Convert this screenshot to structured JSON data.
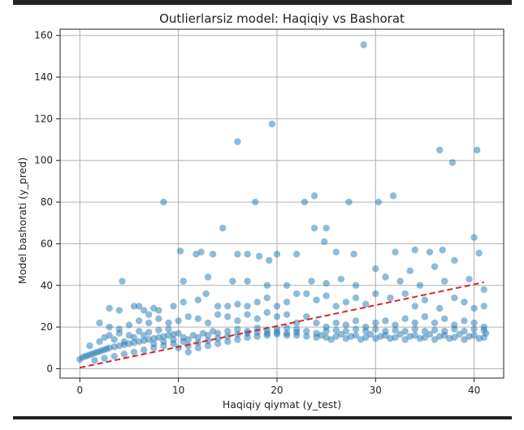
{
  "chart_data": {
    "type": "scatter",
    "title": "Outlierlarsiz model: Haqiqiy vs Bashorat",
    "xlabel": "Haqiqiy qiymat (y_test)",
    "ylabel": "Model bashorati (y_pred)",
    "xlim": [
      -2,
      43
    ],
    "ylim": [
      -4.5,
      163
    ],
    "xticks": [
      0,
      10,
      20,
      30,
      40
    ],
    "xtick_labels": [
      "0",
      "10",
      "20",
      "30",
      "40"
    ],
    "yticks": [
      0,
      20,
      40,
      60,
      80,
      100,
      120,
      140,
      160
    ],
    "ytick_labels": [
      "0",
      "20",
      "40",
      "60",
      "80",
      "100",
      "120",
      "140",
      "160"
    ],
    "grid": true,
    "point_color": "#1f77b4",
    "reference_line": {
      "style": "dashed",
      "color": "#d62728",
      "from": [
        0,
        0.5
      ],
      "to": [
        41,
        41.5
      ]
    },
    "scatter_points": [
      [
        28.8,
        155.5
      ],
      [
        19.5,
        117.5
      ],
      [
        16.0,
        109.0
      ],
      [
        36.5,
        105.0
      ],
      [
        40.3,
        105.0
      ],
      [
        37.8,
        99.0
      ],
      [
        8.5,
        80.0
      ],
      [
        17.8,
        80.0
      ],
      [
        22.8,
        80.0
      ],
      [
        27.3,
        80.0
      ],
      [
        30.3,
        80.0
      ],
      [
        31.8,
        83.0
      ],
      [
        23.8,
        83.0
      ],
      [
        14.5,
        67.5
      ],
      [
        23.8,
        67.5
      ],
      [
        25.0,
        67.5
      ],
      [
        40.0,
        63.0
      ],
      [
        24.8,
        61.0
      ],
      [
        10.2,
        56.5
      ],
      [
        11.8,
        55.0
      ],
      [
        12.3,
        56.0
      ],
      [
        13.5,
        55.0
      ],
      [
        16.0,
        55.0
      ],
      [
        17.0,
        55.0
      ],
      [
        18.2,
        54.0
      ],
      [
        19.2,
        52.0
      ],
      [
        20.0,
        55.0
      ],
      [
        22.0,
        55.0
      ],
      [
        26.0,
        56.0
      ],
      [
        27.8,
        55.0
      ],
      [
        32.0,
        56.0
      ],
      [
        34.0,
        57.0
      ],
      [
        35.5,
        56.0
      ],
      [
        36.8,
        57.0
      ],
      [
        40.5,
        55.5
      ],
      [
        38.0,
        52.0
      ],
      [
        36.0,
        49.0
      ],
      [
        33.5,
        47.0
      ],
      [
        4.3,
        42.0
      ],
      [
        10.5,
        42.0
      ],
      [
        13.0,
        44.0
      ],
      [
        15.5,
        42.0
      ],
      [
        17.0,
        42.0
      ],
      [
        19.0,
        40.0
      ],
      [
        21.0,
        40.0
      ],
      [
        23.5,
        42.0
      ],
      [
        25.0,
        41.0
      ],
      [
        26.5,
        43.0
      ],
      [
        28.0,
        40.0
      ],
      [
        30.0,
        48.0
      ],
      [
        31.0,
        44.0
      ],
      [
        32.5,
        42.0
      ],
      [
        34.5,
        40.0
      ],
      [
        37.0,
        42.0
      ],
      [
        39.5,
        43.0
      ],
      [
        41.0,
        38.0
      ],
      [
        5.5,
        30.0
      ],
      [
        6.5,
        28.0
      ],
      [
        7.5,
        29.0
      ],
      [
        9.5,
        30.0
      ],
      [
        10.5,
        32.0
      ],
      [
        12.0,
        33.0
      ],
      [
        12.8,
        36.0
      ],
      [
        14.0,
        30.0
      ],
      [
        15.0,
        30.0
      ],
      [
        16.0,
        31.0
      ],
      [
        17.0,
        30.0
      ],
      [
        18.0,
        32.0
      ],
      [
        19.0,
        34.0
      ],
      [
        20.0,
        30.0
      ],
      [
        21.0,
        32.0
      ],
      [
        22.0,
        36.0
      ],
      [
        23.0,
        36.0
      ],
      [
        24.0,
        33.0
      ],
      [
        25.0,
        35.0
      ],
      [
        26.0,
        30.0
      ],
      [
        27.0,
        32.0
      ],
      [
        28.0,
        34.0
      ],
      [
        29.0,
        31.0
      ],
      [
        30.0,
        36.0
      ],
      [
        31.5,
        34.0
      ],
      [
        33.0,
        36.0
      ],
      [
        34.0,
        30.0
      ],
      [
        35.0,
        33.0
      ],
      [
        36.5,
        29.0
      ],
      [
        38.0,
        34.0
      ],
      [
        39.0,
        32.0
      ],
      [
        40.0,
        29.0
      ],
      [
        41.0,
        30.0
      ],
      [
        3.0,
        20.0
      ],
      [
        4.0,
        19.0
      ],
      [
        5.0,
        21.0
      ],
      [
        6.0,
        23.0
      ],
      [
        7.0,
        22.0
      ],
      [
        8.0,
        24.0
      ],
      [
        9.0,
        22.0
      ],
      [
        10.0,
        23.0
      ],
      [
        11.0,
        25.0
      ],
      [
        12.0,
        24.0
      ],
      [
        13.0,
        22.0
      ],
      [
        14.0,
        26.0
      ],
      [
        15.0,
        25.0
      ],
      [
        16.0,
        23.0
      ],
      [
        17.0,
        26.0
      ],
      [
        18.0,
        24.0
      ],
      [
        19.0,
        27.0
      ],
      [
        20.0,
        25.0
      ],
      [
        21.0,
        26.0
      ],
      [
        22.0,
        22.0
      ],
      [
        23.0,
        25.0
      ],
      [
        24.0,
        22.0
      ],
      [
        25.0,
        20.0
      ],
      [
        26.0,
        22.0
      ],
      [
        27.0,
        21.0
      ],
      [
        28.0,
        23.0
      ],
      [
        29.0,
        20.0
      ],
      [
        30.0,
        22.0
      ],
      [
        31.0,
        23.0
      ],
      [
        32.0,
        21.0
      ],
      [
        33.0,
        24.0
      ],
      [
        34.0,
        22.0
      ],
      [
        35.0,
        25.0
      ],
      [
        36.0,
        22.0
      ],
      [
        37.0,
        24.0
      ],
      [
        38.0,
        21.0
      ],
      [
        39.0,
        23.0
      ],
      [
        40.0,
        22.0
      ],
      [
        41.0,
        20.0
      ],
      [
        0.0,
        4.5
      ],
      [
        0.3,
        5.5
      ],
      [
        0.6,
        6.0
      ],
      [
        0.9,
        6.5
      ],
      [
        1.2,
        7.0
      ],
      [
        1.5,
        7.5
      ],
      [
        1.8,
        8.0
      ],
      [
        2.1,
        8.5
      ],
      [
        2.4,
        9.0
      ],
      [
        2.7,
        9.5
      ],
      [
        3.0,
        10.0
      ],
      [
        3.5,
        10.5
      ],
      [
        4.0,
        11.0
      ],
      [
        4.5,
        11.5
      ],
      [
        5.0,
        12.0
      ],
      [
        5.5,
        12.5
      ],
      [
        6.0,
        13.0
      ],
      [
        6.5,
        13.5
      ],
      [
        7.0,
        14.0
      ],
      [
        7.5,
        14.5
      ],
      [
        8.0,
        15.0
      ],
      [
        8.5,
        15.5
      ],
      [
        9.0,
        16.0
      ],
      [
        9.5,
        16.5
      ],
      [
        10.0,
        17.0
      ],
      [
        1.0,
        11.0
      ],
      [
        2.0,
        13.0
      ],
      [
        3.0,
        16.0
      ],
      [
        4.0,
        17.0
      ],
      [
        5.0,
        16.0
      ],
      [
        6.0,
        18.0
      ],
      [
        7.0,
        17.5
      ],
      [
        8.0,
        18.5
      ],
      [
        9.0,
        19.0
      ],
      [
        1.5,
        4.0
      ],
      [
        2.5,
        5.0
      ],
      [
        3.5,
        6.0
      ],
      [
        4.5,
        7.0
      ],
      [
        5.5,
        8.0
      ],
      [
        6.5,
        9.0
      ],
      [
        7.5,
        10.0
      ],
      [
        8.5,
        11.0
      ],
      [
        9.5,
        12.0
      ],
      [
        10.5,
        13.0
      ],
      [
        11.0,
        14.0
      ],
      [
        12.0,
        15.0
      ],
      [
        13.0,
        16.0
      ],
      [
        14.0,
        17.0
      ],
      [
        11.0,
        8.0
      ],
      [
        12.0,
        10.0
      ],
      [
        13.0,
        11.0
      ],
      [
        14.0,
        12.0
      ],
      [
        15.0,
        13.0
      ],
      [
        16.0,
        14.0
      ],
      [
        17.0,
        15.0
      ],
      [
        18.0,
        15.5
      ],
      [
        19.0,
        16.0
      ],
      [
        20.0,
        16.5
      ],
      [
        21.0,
        17.0
      ],
      [
        22.0,
        17.5
      ],
      [
        15.0,
        18.0
      ],
      [
        16.0,
        19.0
      ],
      [
        17.0,
        18.0
      ],
      [
        18.0,
        19.5
      ],
      [
        19.0,
        18.5
      ],
      [
        20.0,
        19.0
      ],
      [
        21.0,
        19.5
      ],
      [
        22.0,
        19.0
      ],
      [
        23.0,
        18.0
      ],
      [
        24.0,
        17.0
      ],
      [
        24.5,
        16.0
      ],
      [
        25.0,
        15.0
      ],
      [
        25.5,
        14.0
      ],
      [
        26.0,
        15.5
      ],
      [
        26.5,
        16.5
      ],
      [
        27.0,
        14.5
      ],
      [
        27.5,
        15.5
      ],
      [
        28.0,
        16.0
      ],
      [
        28.5,
        14.0
      ],
      [
        29.0,
        15.0
      ],
      [
        29.5,
        16.5
      ],
      [
        30.0,
        14.5
      ],
      [
        30.5,
        15.5
      ],
      [
        31.0,
        16.0
      ],
      [
        31.5,
        14.5
      ],
      [
        32.0,
        15.0
      ],
      [
        32.5,
        16.5
      ],
      [
        33.0,
        14.0
      ],
      [
        33.5,
        15.5
      ],
      [
        34.0,
        16.0
      ],
      [
        34.5,
        14.5
      ],
      [
        35.0,
        15.0
      ],
      [
        35.5,
        16.5
      ],
      [
        36.0,
        14.0
      ],
      [
        36.5,
        15.5
      ],
      [
        37.0,
        16.0
      ],
      [
        37.5,
        14.5
      ],
      [
        38.0,
        15.0
      ],
      [
        38.5,
        16.5
      ],
      [
        39.0,
        14.0
      ],
      [
        39.5,
        15.5
      ],
      [
        40.0,
        16.0
      ],
      [
        40.5,
        14.5
      ],
      [
        41.0,
        15.0
      ],
      [
        41.2,
        17.0
      ],
      [
        25.0,
        18.0
      ],
      [
        26.0,
        18.5
      ],
      [
        27.0,
        18.0
      ],
      [
        28.0,
        19.0
      ],
      [
        29.0,
        18.0
      ],
      [
        30.0,
        19.0
      ],
      [
        31.0,
        18.0
      ],
      [
        32.0,
        18.5
      ],
      [
        33.0,
        18.0
      ],
      [
        34.0,
        19.0
      ],
      [
        35.0,
        18.0
      ],
      [
        36.0,
        18.5
      ],
      [
        37.0,
        18.0
      ],
      [
        38.0,
        19.0
      ],
      [
        39.0,
        18.0
      ],
      [
        40.0,
        19.0
      ],
      [
        41.0,
        18.5
      ],
      [
        10.0,
        10.0
      ],
      [
        11.0,
        11.0
      ],
      [
        12.0,
        12.5
      ],
      [
        13.0,
        13.5
      ],
      [
        14.0,
        14.5
      ],
      [
        15.0,
        15.5
      ],
      [
        16.0,
        16.5
      ],
      [
        17.0,
        17.0
      ],
      [
        18.0,
        17.5
      ],
      [
        19.0,
        17.0
      ],
      [
        20.0,
        17.5
      ],
      [
        21.0,
        16.0
      ],
      [
        22.0,
        16.0
      ],
      [
        23.0,
        15.5
      ],
      [
        24.0,
        15.0
      ],
      [
        2.0,
        22.0
      ],
      [
        3.0,
        29.0
      ],
      [
        4.0,
        28.0
      ],
      [
        6.0,
        30.0
      ],
      [
        7.0,
        26.0
      ],
      [
        8.0,
        28.0
      ],
      [
        2.5,
        15.0
      ],
      [
        3.5,
        14.0
      ],
      [
        4.5,
        13.0
      ],
      [
        5.5,
        15.0
      ],
      [
        6.5,
        16.0
      ],
      [
        7.5,
        12.0
      ],
      [
        8.5,
        13.0
      ],
      [
        9.5,
        14.0
      ],
      [
        10.5,
        15.0
      ],
      [
        11.5,
        16.0
      ],
      [
        12.5,
        17.0
      ],
      [
        13.5,
        18.0
      ]
    ]
  }
}
